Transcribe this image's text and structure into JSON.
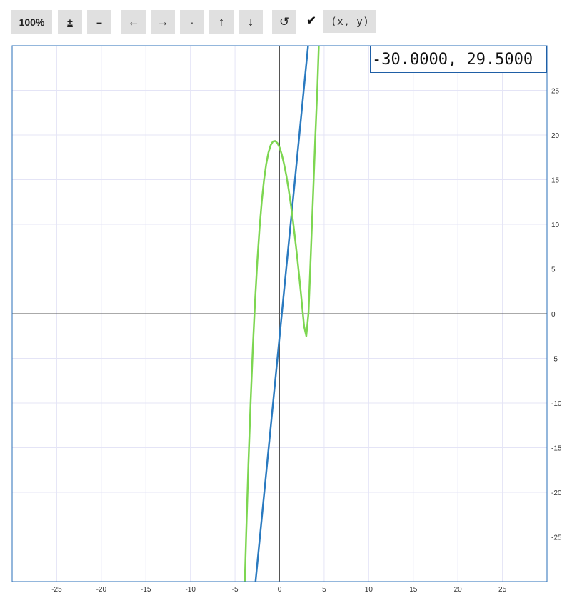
{
  "toolbar": {
    "zoom_label": "100%",
    "plusminus_label": "±",
    "minus_label": "–",
    "left_label": "←",
    "right_label": "→",
    "center_label": "·",
    "up_label": "↑",
    "down_label": "↓",
    "reset_label": "↺",
    "xy_checked": true,
    "xy_label": "(x, y)"
  },
  "coord_readout": "-30.0000, 29.5000",
  "chart_data": {
    "type": "line",
    "xlim": [
      -30,
      30
    ],
    "ylim": [
      -30,
      30
    ],
    "grid": true,
    "y_axis_side": "right",
    "x_ticks": [
      -25,
      -20,
      -15,
      -10,
      -5,
      0,
      5,
      10,
      15,
      20,
      25
    ],
    "y_ticks": [
      25,
      20,
      15,
      10,
      5,
      0,
      -5,
      -10,
      -15,
      -20,
      -25
    ],
    "series": [
      {
        "color": "#2a7ac0",
        "x": [
          -2.7,
          3.2
        ],
        "y": [
          -30,
          30
        ]
      },
      {
        "color": "#7dd651",
        "x": [
          -3.9,
          -3.75,
          -3.5,
          -3.25,
          -3.0,
          -2.75,
          -2.5,
          -2.25,
          -2.0,
          -1.75,
          -1.5,
          -1.25,
          -1.0,
          -0.75,
          -0.5,
          -0.25,
          0,
          0.25,
          0.5,
          0.75,
          1.0,
          1.25,
          1.5,
          1.75,
          2.0,
          2.25,
          2.5,
          2.75,
          3.0,
          3.25,
          3.5,
          3.75,
          4.0,
          4.25,
          4.4
        ],
        "y": [
          -30,
          -24.79,
          -16.86,
          -9.88,
          -3.8,
          1.43,
          5.86,
          9.56,
          12.57,
          14.95,
          16.75,
          18.04,
          18.86,
          19.27,
          19.33,
          19.1,
          18.6,
          17.8,
          16.75,
          15.5,
          14.0,
          12.3,
          10.4,
          8.3,
          6.1,
          3.7,
          1.2,
          -1.4,
          -2.5,
          0.1,
          6.5,
          13.0,
          19.5,
          25.5,
          30
        ]
      }
    ]
  }
}
